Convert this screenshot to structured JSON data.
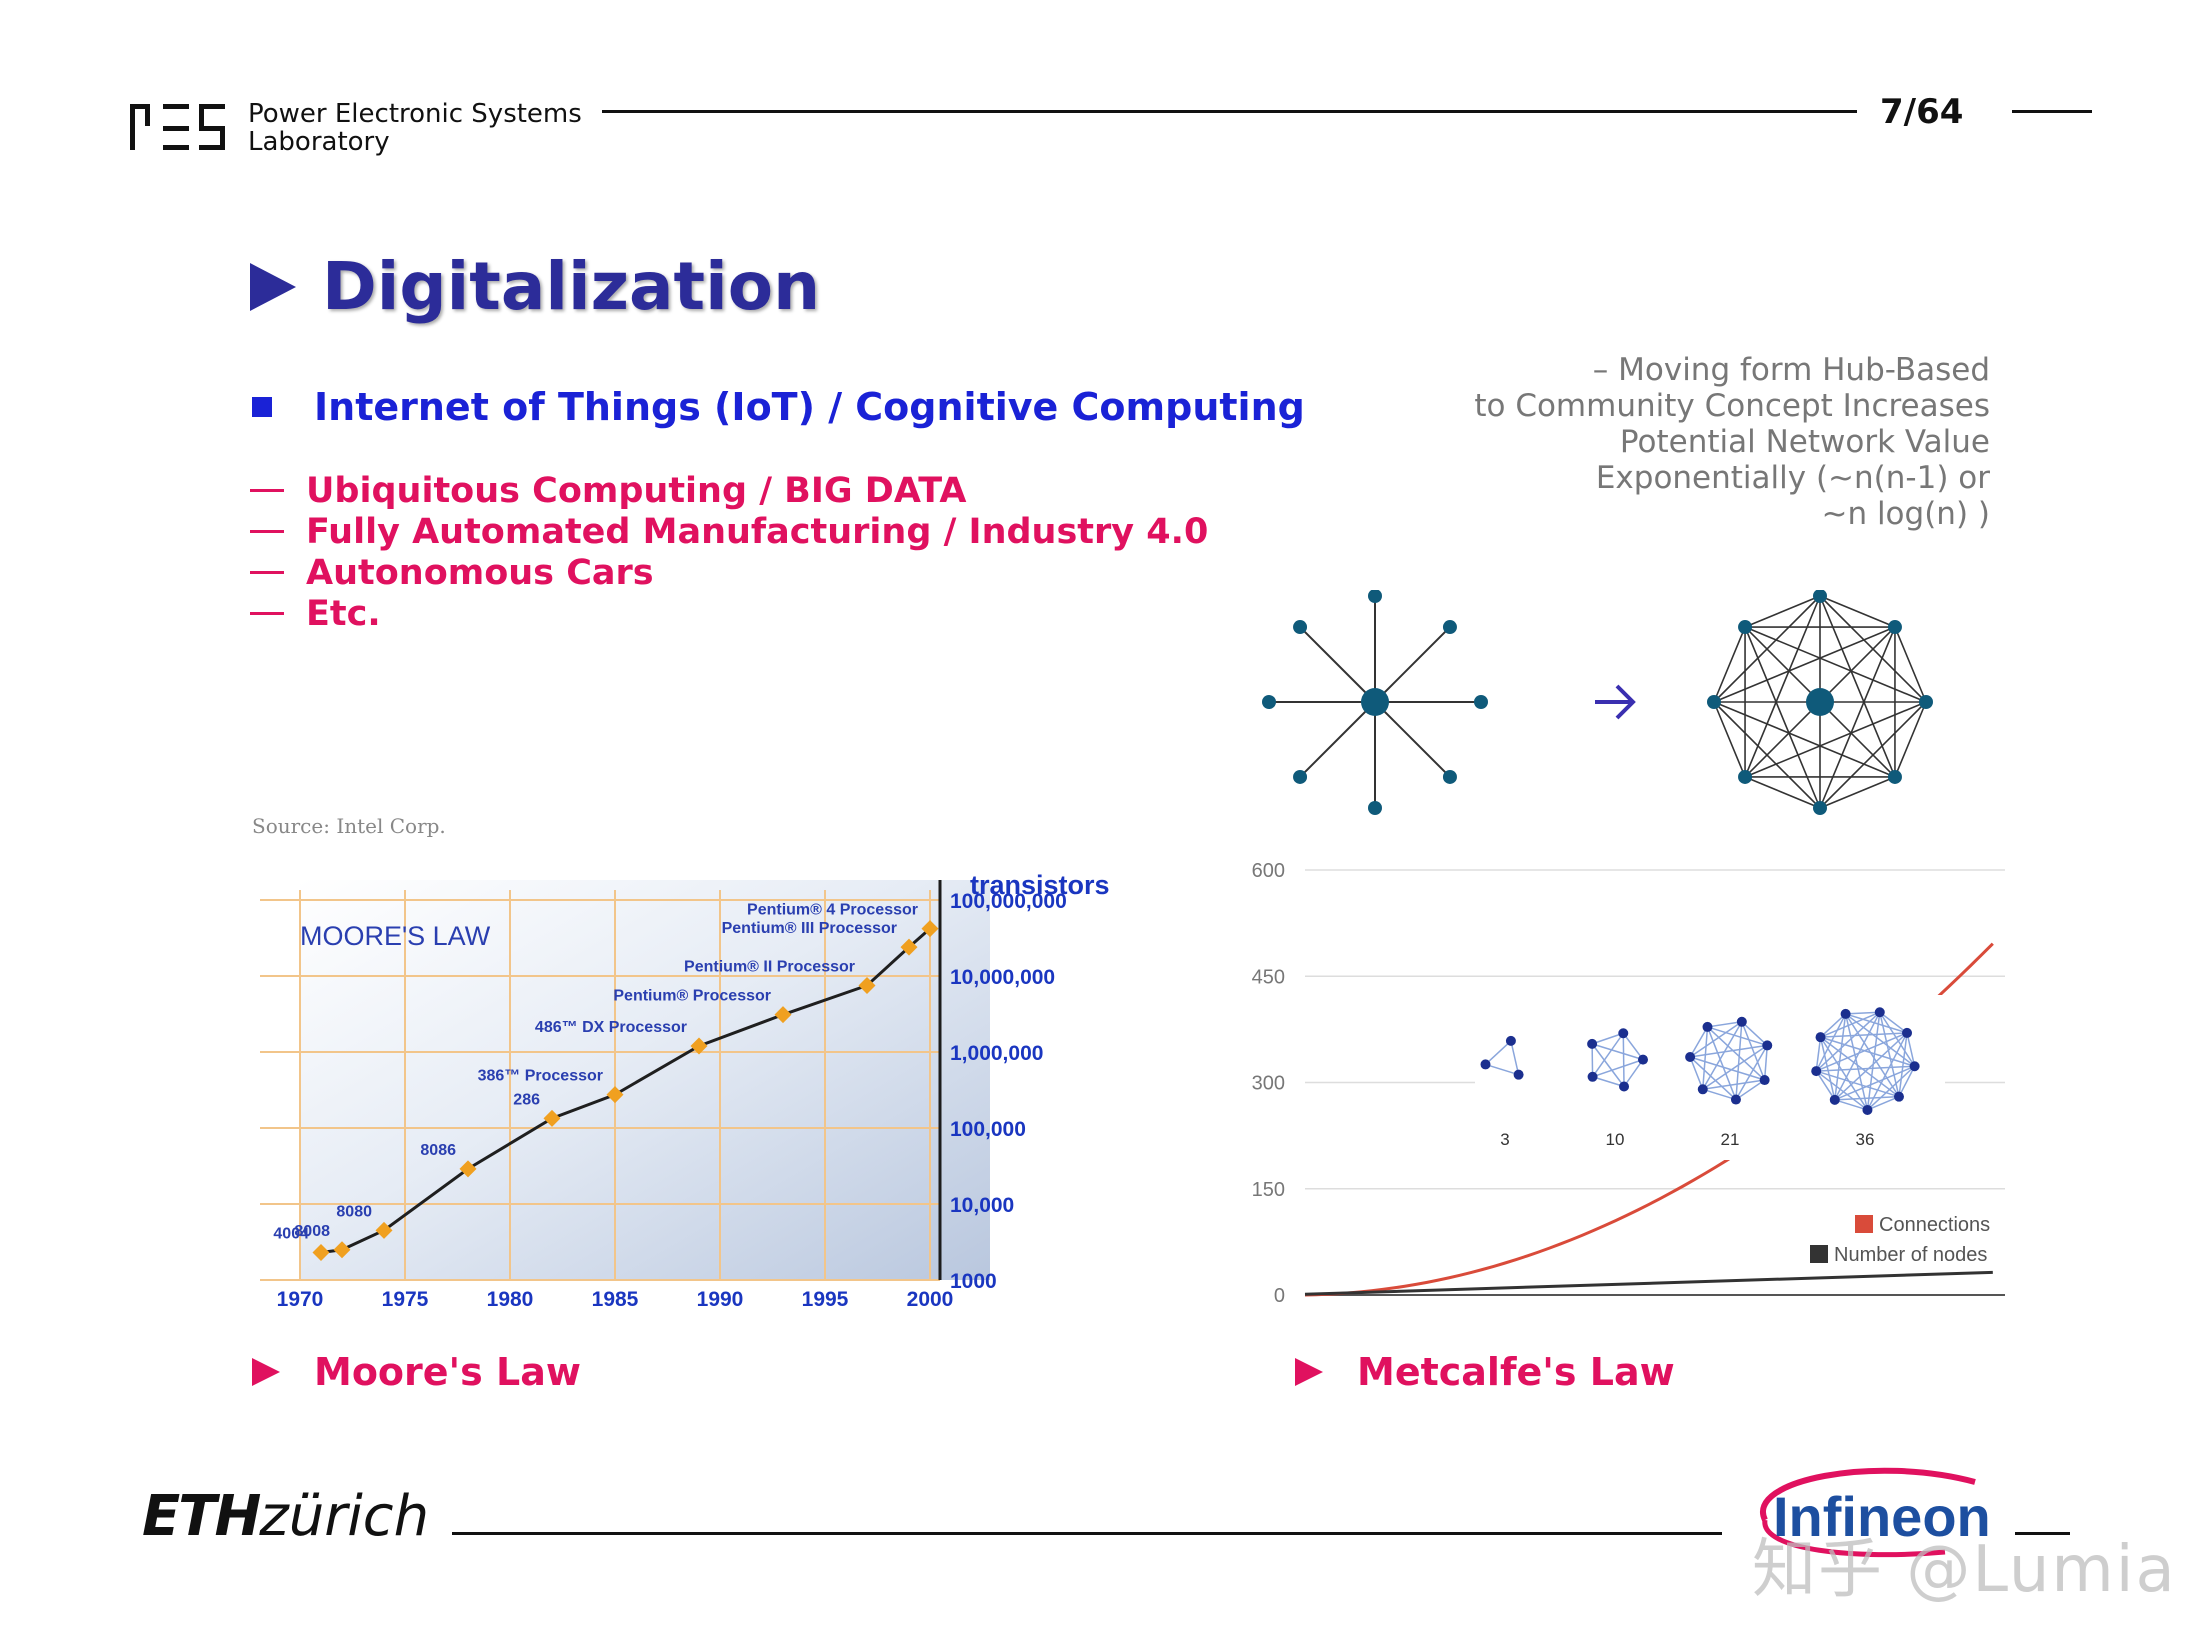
{
  "header": {
    "lab_line1": "Power Electronic Systems",
    "lab_line2": "Laboratory",
    "page": "7/64"
  },
  "title": "Digitalization",
  "iot_heading": "Internet of Things (IoT)  / Cognitive Computing",
  "bullets": [
    "Ubiquitous Computing / BIG DATA",
    "Fully Automated Manufacturing / Industry 4.0",
    "Autonomous Cars",
    "Etc."
  ],
  "note_lines": [
    "– Moving form Hub-Based",
    "to Community Concept Increases",
    "Potential Network Value",
    "Exponentially (~n(n-1)  or",
    "~n log(n) )"
  ],
  "source": "Source: Intel Corp.",
  "labels": {
    "moore": "Moore's Law",
    "metcalfe": "Metcalfe's Law"
  },
  "footer": {
    "eth_bold": "ETH",
    "eth_rest": "zürich",
    "infineon": "Infineon",
    "watermark": "知乎 @Lumia"
  },
  "colors": {
    "title": "#2c2c99",
    "iot": "#1a22d6",
    "accent": "#e0115f",
    "moore_line": "#1f1f1f",
    "moore_marker": "#f0a020",
    "connections": "#d94b3a",
    "nodes": "#333333",
    "network_node": "#0f5a7a"
  },
  "chart_data": [
    {
      "type": "line",
      "title": "MOORE'S LAW",
      "ylabel": "transistors",
      "y_scale": "log",
      "ylim": [
        1000,
        100000000
      ],
      "xlim": [
        1970,
        2000
      ],
      "x_ticks": [
        "1970",
        "1975",
        "1980",
        "1985",
        "1990",
        "1995",
        "2000"
      ],
      "y_ticks": [
        "100,000,000",
        "10,000,000",
        "1,000,000",
        "100,000",
        "10,000",
        "1000"
      ],
      "points": [
        {
          "label": "4004",
          "x": 1971,
          "y": 2300
        },
        {
          "label": "8008",
          "x": 1972,
          "y": 2500
        },
        {
          "label": "8080",
          "x": 1974,
          "y": 4500
        },
        {
          "label": "8086",
          "x": 1978,
          "y": 29000
        },
        {
          "label": "286",
          "x": 1982,
          "y": 134000
        },
        {
          "label": "386™ Processor",
          "x": 1985,
          "y": 275000
        },
        {
          "label": "486™ DX Processor",
          "x": 1989,
          "y": 1200000
        },
        {
          "label": "Pentium® Processor",
          "x": 1993,
          "y": 3100000
        },
        {
          "label": "Pentium® II Processor",
          "x": 1997,
          "y": 7500000
        },
        {
          "label": "Pentium® III Processor",
          "x": 1999,
          "y": 24000000
        },
        {
          "label": "Pentium® 4 Processor",
          "x": 2000,
          "y": 42000000
        }
      ]
    },
    {
      "type": "line",
      "ylim": [
        0,
        600
      ],
      "y_ticks": [
        "600",
        "450",
        "300",
        "150",
        "0"
      ],
      "series": [
        {
          "name": "Connections",
          "x": [
            1,
            5,
            10,
            15,
            20,
            25,
            30,
            32
          ],
          "values": [
            0,
            10,
            45,
            105,
            190,
            300,
            435,
            496
          ]
        },
        {
          "name": "Number of nodes",
          "x": [
            1,
            32
          ],
          "values": [
            1,
            32
          ]
        }
      ],
      "inset": [
        {
          "label": "3",
          "nodes": 3
        },
        {
          "label": "10",
          "nodes": 5
        },
        {
          "label": "21",
          "nodes": 7
        },
        {
          "label": "36",
          "nodes": 9
        }
      ]
    }
  ]
}
